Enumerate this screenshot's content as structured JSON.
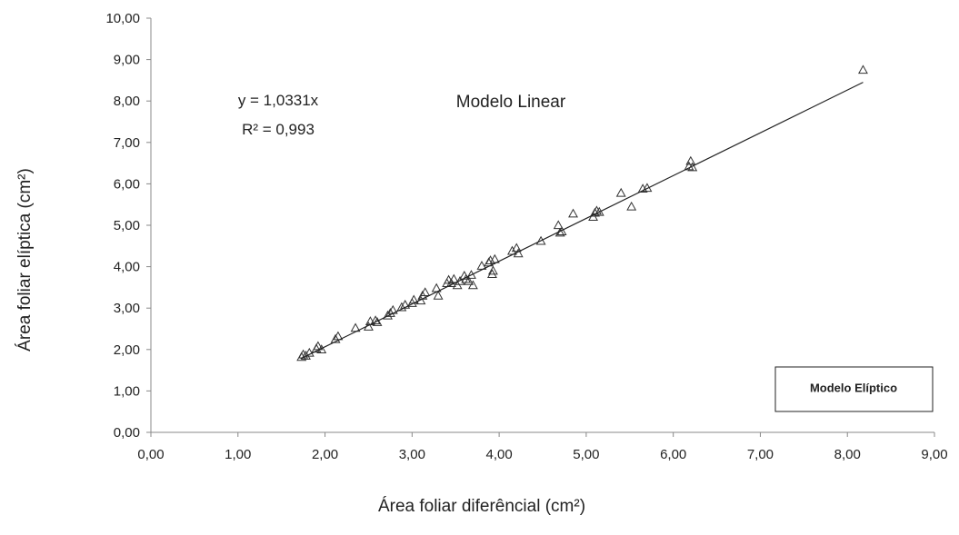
{
  "chart_data": {
    "type": "scatter",
    "title": "Modelo Linear",
    "xlabel": "Área foliar diferêncial (cm²)",
    "ylabel": "Área foliar elíptica (cm²)",
    "xlim": [
      0,
      9
    ],
    "ylim": [
      0,
      10
    ],
    "x_ticks": [
      "0,00",
      "1,00",
      "2,00",
      "3,00",
      "4,00",
      "5,00",
      "6,00",
      "7,00",
      "8,00",
      "9,00"
    ],
    "y_ticks": [
      "0,00",
      "1,00",
      "2,00",
      "3,00",
      "4,00",
      "5,00",
      "6,00",
      "7,00",
      "8,00",
      "9,00",
      "10,00"
    ],
    "grid": false,
    "marker": "triangle-open",
    "trendline": {
      "type": "linear",
      "slope": 1.0331,
      "intercept": 0,
      "x_range": [
        1.72,
        8.18
      ]
    },
    "annotations": {
      "equation": "y = 1,0331x",
      "r_squared": "R² = 0,993"
    },
    "legend": {
      "label": "Modelo Elíptico",
      "position": "bottom-right"
    },
    "series": [
      {
        "points": [
          [
            1.73,
            1.82
          ],
          [
            1.75,
            1.88
          ],
          [
            1.78,
            1.85
          ],
          [
            1.82,
            1.92
          ],
          [
            1.9,
            2.02
          ],
          [
            1.92,
            2.08
          ],
          [
            1.96,
            2.0
          ],
          [
            2.12,
            2.25
          ],
          [
            2.15,
            2.32
          ],
          [
            2.35,
            2.52
          ],
          [
            2.5,
            2.55
          ],
          [
            2.52,
            2.68
          ],
          [
            2.58,
            2.7
          ],
          [
            2.6,
            2.66
          ],
          [
            2.72,
            2.82
          ],
          [
            2.75,
            2.88
          ],
          [
            2.78,
            2.95
          ],
          [
            2.88,
            3.02
          ],
          [
            2.92,
            3.08
          ],
          [
            3.0,
            3.12
          ],
          [
            3.02,
            3.2
          ],
          [
            3.1,
            3.18
          ],
          [
            3.12,
            3.3
          ],
          [
            3.15,
            3.38
          ],
          [
            3.28,
            3.48
          ],
          [
            3.3,
            3.3
          ],
          [
            3.4,
            3.6
          ],
          [
            3.42,
            3.68
          ],
          [
            3.45,
            3.6
          ],
          [
            3.48,
            3.7
          ],
          [
            3.52,
            3.55
          ],
          [
            3.55,
            3.65
          ],
          [
            3.6,
            3.78
          ],
          [
            3.62,
            3.7
          ],
          [
            3.65,
            3.65
          ],
          [
            3.68,
            3.8
          ],
          [
            3.7,
            3.55
          ],
          [
            3.8,
            4.02
          ],
          [
            3.88,
            4.1
          ],
          [
            3.9,
            4.15
          ],
          [
            3.92,
            3.82
          ],
          [
            3.93,
            3.9
          ],
          [
            3.95,
            4.18
          ],
          [
            4.15,
            4.38
          ],
          [
            4.2,
            4.45
          ],
          [
            4.22,
            4.32
          ],
          [
            4.48,
            4.62
          ],
          [
            4.68,
            5.0
          ],
          [
            4.7,
            4.82
          ],
          [
            4.72,
            4.85
          ],
          [
            4.85,
            5.28
          ],
          [
            5.08,
            5.2
          ],
          [
            5.1,
            5.3
          ],
          [
            5.12,
            5.35
          ],
          [
            5.15,
            5.32
          ],
          [
            5.4,
            5.78
          ],
          [
            5.52,
            5.45
          ],
          [
            5.65,
            5.88
          ],
          [
            5.7,
            5.9
          ],
          [
            6.18,
            6.42
          ],
          [
            6.2,
            6.55
          ],
          [
            6.22,
            6.4
          ],
          [
            8.18,
            8.75
          ]
        ]
      }
    ]
  }
}
